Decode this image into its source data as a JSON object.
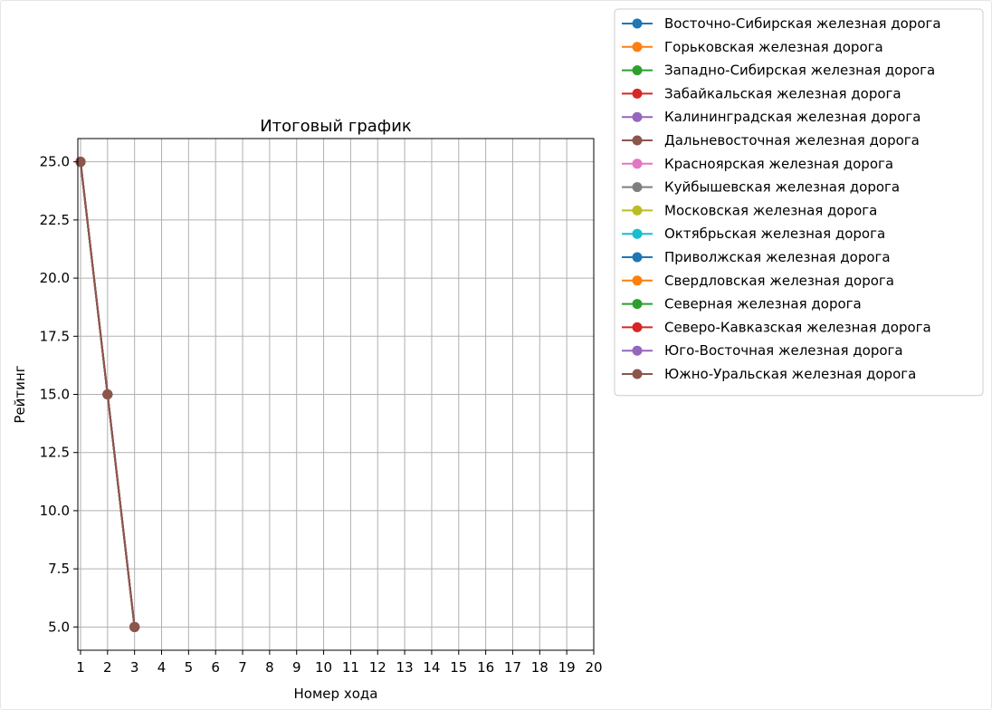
{
  "chart_data": {
    "type": "line",
    "title": "Итоговый график",
    "xlabel": "Номер хода",
    "ylabel": "Рейтинг",
    "xlim": [
      0.9,
      20
    ],
    "ylim": [
      4.0,
      26.0
    ],
    "x_ticks": [
      1,
      2,
      3,
      4,
      5,
      6,
      7,
      8,
      9,
      10,
      11,
      12,
      13,
      14,
      15,
      16,
      17,
      18,
      19,
      20
    ],
    "y_ticks": [
      5.0,
      7.5,
      10.0,
      12.5,
      15.0,
      17.5,
      20.0,
      22.5,
      25.0
    ],
    "y_tick_labels": [
      "5.0",
      "7.5",
      "10.0",
      "12.5",
      "15.0",
      "17.5",
      "20.0",
      "22.5",
      "25.0"
    ],
    "grid": true,
    "legend_position": "outside-right-top",
    "series": [
      {
        "name": "Восточно-Сибирская железная дорога",
        "color": "#1f77b4",
        "x": [
          1,
          2,
          3
        ],
        "y": [
          25,
          15,
          5
        ]
      },
      {
        "name": "Горьковская железная дорога",
        "color": "#ff7f0e",
        "x": [
          1,
          2,
          3
        ],
        "y": [
          25,
          15,
          5
        ]
      },
      {
        "name": "Западно-Сибирская железная дорога",
        "color": "#2ca02c",
        "x": [
          1,
          2,
          3
        ],
        "y": [
          25,
          15,
          5
        ]
      },
      {
        "name": "Забайкальская железная дорога",
        "color": "#d62728",
        "x": [
          1,
          2,
          3
        ],
        "y": [
          25,
          15,
          5
        ]
      },
      {
        "name": "Калининградская железная дорога",
        "color": "#9467bd",
        "x": [
          1,
          2,
          3
        ],
        "y": [
          25,
          15,
          5
        ]
      },
      {
        "name": "Дальневосточная железная дорога",
        "color": "#8c564b",
        "x": [
          1,
          2,
          3
        ],
        "y": [
          25,
          15,
          5
        ]
      },
      {
        "name": "Красноярская железная дорога",
        "color": "#e377c2",
        "x": [
          1,
          2,
          3
        ],
        "y": [
          25,
          15,
          5
        ]
      },
      {
        "name": "Куйбышевская железная дорога",
        "color": "#7f7f7f",
        "x": [
          1,
          2,
          3
        ],
        "y": [
          25,
          15,
          5
        ]
      },
      {
        "name": "Московская железная дорога",
        "color": "#bcbd22",
        "x": [
          1,
          2,
          3
        ],
        "y": [
          25,
          15,
          5
        ]
      },
      {
        "name": "Октябрьская железная дорога",
        "color": "#17becf",
        "x": [
          1,
          2,
          3
        ],
        "y": [
          25,
          15,
          5
        ]
      },
      {
        "name": "Приволжская железная дорога",
        "color": "#1f77b4",
        "x": [
          1,
          2,
          3
        ],
        "y": [
          25,
          15,
          5
        ]
      },
      {
        "name": "Свердловская железная дорога",
        "color": "#ff7f0e",
        "x": [
          1,
          2,
          3
        ],
        "y": [
          25,
          15,
          5
        ]
      },
      {
        "name": "Северная железная дорога",
        "color": "#2ca02c",
        "x": [
          1,
          2,
          3
        ],
        "y": [
          25,
          15,
          5
        ]
      },
      {
        "name": "Северо-Кавказская железная дорога",
        "color": "#d62728",
        "x": [
          1,
          2,
          3
        ],
        "y": [
          25,
          15,
          5
        ]
      },
      {
        "name": "Юго-Восточная железная дорога",
        "color": "#9467bd",
        "x": [
          1,
          2,
          3
        ],
        "y": [
          25,
          15,
          5
        ]
      },
      {
        "name": "Южно-Уральская железная дорога",
        "color": "#8c564b",
        "x": [
          1,
          2,
          3
        ],
        "y": [
          25,
          15,
          5
        ]
      }
    ]
  }
}
